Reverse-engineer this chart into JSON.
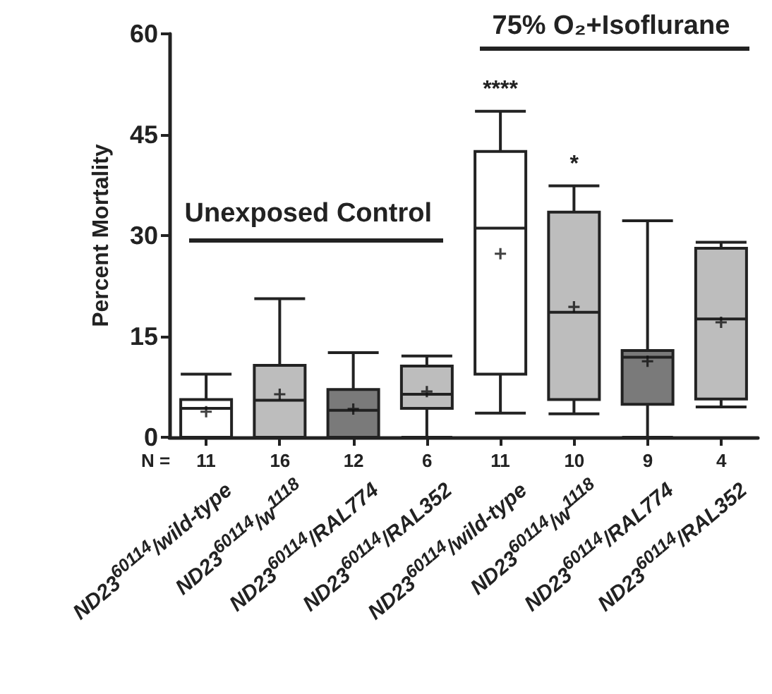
{
  "chart_data": {
    "type": "box",
    "ylabel": "Percent Mortality",
    "categories": [
      "ND23$^{60114}$/wild-type",
      "ND23$^{60114}$/w$^{1118}$",
      "ND23$^{60114}$/RAL774",
      "ND23$^{60114}$/RAL352",
      "ND23$^{60114}$/wild-type",
      "ND23$^{60114}$/w$^{1118}$",
      "ND23$^{60114}$/RAL774",
      "ND23$^{60114}$/RAL352"
    ],
    "colors": [
      "#ffffff",
      "#bdbdbd",
      "#7a7a7a",
      "#bdbdbd",
      "#ffffff",
      "#bdbdbd",
      "#7a7a7a",
      "#bdbdbd"
    ],
    "boxes": [
      {
        "low": 0,
        "q1": 0,
        "median": 4.3,
        "q3": 5.6,
        "high": 9.4,
        "mean": 3.8
      },
      {
        "low": 0,
        "q1": 0,
        "median": 5.5,
        "q3": 10.7,
        "high": 20.6,
        "mean": 6.4
      },
      {
        "low": 0,
        "q1": 0,
        "median": 4.0,
        "q3": 7.1,
        "high": 12.6,
        "mean": 4.2
      },
      {
        "low": 0,
        "q1": 4.3,
        "median": 6.4,
        "q3": 10.6,
        "high": 12.1,
        "mean": 6.8
      },
      {
        "low": 3.6,
        "q1": 9.4,
        "median": 31.1,
        "q3": 42.5,
        "high": 48.5,
        "mean": 27.3
      },
      {
        "low": 3.5,
        "q1": 5.6,
        "median": 18.6,
        "q3": 33.5,
        "high": 37.4,
        "mean": 19.4
      },
      {
        "low": 0,
        "q1": 4.9,
        "median": 11.9,
        "q3": 12.9,
        "high": 32.2,
        "mean": 11.3
      },
      {
        "low": 4.5,
        "q1": 5.7,
        "median": 17.6,
        "q3": 28.1,
        "high": 29.0,
        "mean": 17.1
      }
    ],
    "ylim": [
      0,
      60
    ],
    "yticks": [
      0,
      15,
      30,
      45,
      60
    ],
    "annotations": [
      "Unexposed Control",
      "75% O₂+Isoflurane",
      "****",
      "*",
      "N =",
      "11",
      "16",
      "12",
      "6",
      "11",
      "10",
      "9",
      "4"
    ]
  }
}
